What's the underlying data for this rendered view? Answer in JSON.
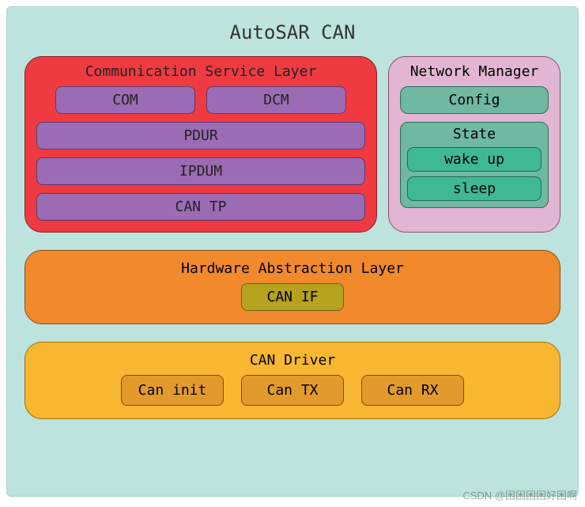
{
  "canvas": {
    "background": "#ffffff"
  },
  "outer": {
    "title": "AutoSAR CAN",
    "background": "#bde3de",
    "border": "#a8d5d0",
    "title_color": "#333333",
    "title_fontsize": 24
  },
  "comm": {
    "title": "Communication Service Layer",
    "background": "#ef3a42",
    "border": "#8a1f24",
    "text_color": "#222222",
    "block_bg": "#9b6bb3",
    "block_border": "#5d3a70",
    "items_row1": [
      "COM",
      "DCM"
    ],
    "items_full": [
      "PDUR",
      "IPDUM",
      "CAN TP"
    ]
  },
  "net": {
    "title": "Network Manager",
    "background": "#e2b6d2",
    "border": "#8a4d73",
    "config": {
      "label": "Config",
      "bg": "#6fb8a1",
      "border": "#2f6d5a"
    },
    "state": {
      "title": "State",
      "bg": "#6fb8a1",
      "border": "#2f6d5a",
      "item_bg": "#3fb894",
      "item_border": "#1e6b54",
      "items": [
        "wake up",
        "sleep"
      ]
    }
  },
  "hal": {
    "title": "Hardware Abstraction Layer",
    "background": "#f08a2c",
    "border": "#8a4d12",
    "block": {
      "label": "CAN IF",
      "bg": "#b5a21e",
      "border": "#6b5f0f"
    }
  },
  "driver": {
    "title": "CAN Driver",
    "background": "#f7b731",
    "border": "#a06e0a",
    "block_bg": "#e39a2d",
    "block_border": "#7a4f10",
    "items": [
      "Can init",
      "Can TX",
      "Can RX"
    ]
  },
  "watermark": "CSDN @困困困困好困啊"
}
